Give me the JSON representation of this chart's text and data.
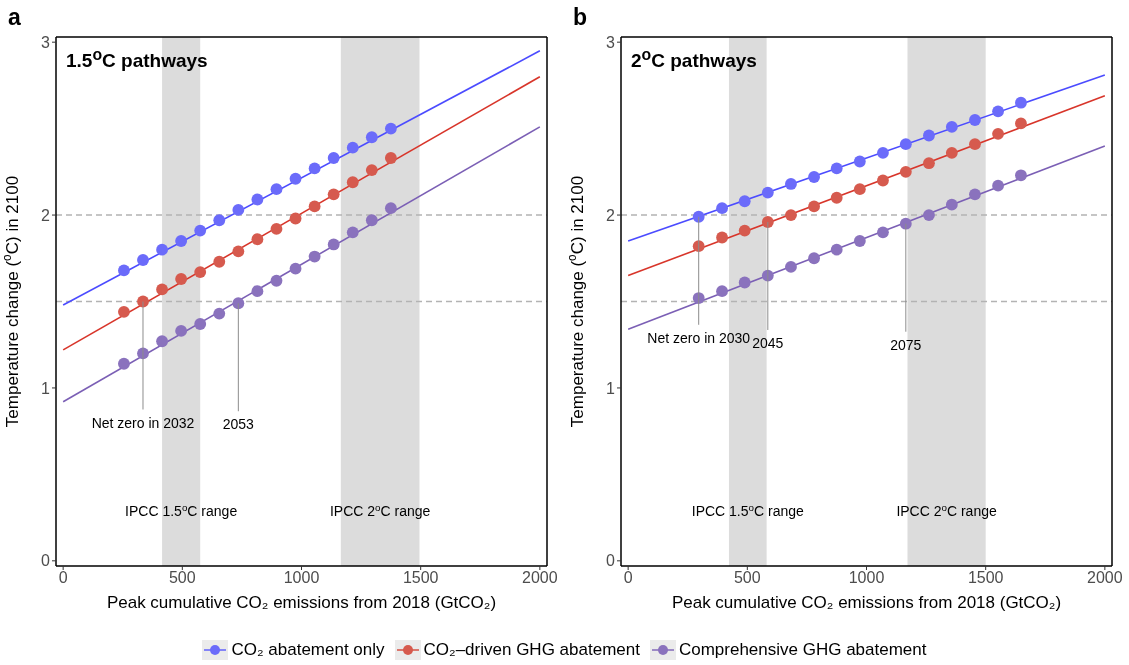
{
  "chart_data": [
    {
      "type": "scatter",
      "title": "a",
      "subtitle": "1.5$^{o}$C pathways",
      "xlabel": "Peak cumulative CO₂ emissions from 2018 (GtCO₂)",
      "ylabel": "Temperature change ($^{o}$C) in 2100",
      "xlim": [
        -30,
        2030
      ],
      "xticks": [
        0,
        500,
        1000,
        1500,
        2000
      ],
      "ylim": [
        -0.03,
        3.03
      ],
      "yticks": [
        0,
        1,
        2,
        3
      ],
      "legend": "bottom",
      "series": [
        {
          "type": "line",
          "color": "#4b4bff",
          "x": [
            0,
            2000
          ],
          "values": [
            1.48,
            2.95
          ]
        },
        {
          "type": "line",
          "color": "#d8352a",
          "x": [
            0,
            2000
          ],
          "values": [
            1.22,
            2.8
          ]
        },
        {
          "type": "line",
          "color": "#7b5fb5",
          "x": [
            0,
            2000
          ],
          "values": [
            0.92,
            2.51
          ]
        },
        {
          "marker": "circle",
          "name": "CO₂ abatement only",
          "color": "#6b6bfa",
          "x": [
            255,
            335,
            415,
            495,
            575,
            655,
            735,
            815,
            895,
            975,
            1055,
            1135,
            1215,
            1295,
            1375
          ],
          "values": [
            1.68,
            1.74,
            1.8,
            1.85,
            1.91,
            1.97,
            2.03,
            2.09,
            2.15,
            2.21,
            2.27,
            2.33,
            2.39,
            2.45,
            2.5
          ]
        },
        {
          "marker": "circle",
          "name": "CO₂–driven GHG abatement",
          "color": "#d65a4e",
          "x": [
            255,
            335,
            415,
            495,
            575,
            655,
            735,
            815,
            895,
            975,
            1055,
            1135,
            1215,
            1295,
            1375
          ],
          "values": [
            1.44,
            1.5,
            1.57,
            1.63,
            1.67,
            1.73,
            1.79,
            1.86,
            1.92,
            1.98,
            2.05,
            2.12,
            2.19,
            2.26,
            2.33
          ]
        },
        {
          "marker": "circle",
          "name": "Comprehensive GHG abatement",
          "color": "#8a72bd",
          "x": [
            255,
            335,
            415,
            495,
            575,
            655,
            735,
            815,
            895,
            975,
            1055,
            1135,
            1215,
            1295,
            1375
          ],
          "values": [
            1.14,
            1.2,
            1.27,
            1.33,
            1.37,
            1.43,
            1.49,
            1.56,
            1.62,
            1.69,
            1.76,
            1.83,
            1.9,
            1.97,
            2.04
          ]
        }
      ],
      "bands": [
        {
          "axis": "x",
          "from": 415,
          "to": 575,
          "label": "IPCC 1.5$^{o}$C range",
          "color": "#dcdcdc"
        },
        {
          "axis": "x",
          "from": 1165,
          "to": 1495,
          "label": "IPCC 2$^{o}$C range",
          "color": "#dcdcdc"
        }
      ],
      "ref_lines": [
        {
          "axis": "y",
          "value": 1.5,
          "color": "#b3b3b3",
          "line_style": "dashed"
        },
        {
          "axis": "y",
          "value": 2,
          "color": "#b3b3b3",
          "line_style": "dashed"
        }
      ],
      "annotations": [
        {
          "text": "Net zero in 2032",
          "x": 335,
          "y": 1.5
        },
        {
          "text": "2053",
          "x": 735,
          "y": 1.49
        }
      ]
    },
    {
      "type": "scatter",
      "title": "b",
      "subtitle": "2$^{o}$C pathways",
      "xlabel": "Peak cumulative CO₂ emissions from 2018 (GtCO₂)",
      "ylabel": "Temperature change ($^{o}$C) in 2100",
      "xlim": [
        -30,
        2030
      ],
      "xticks": [
        0,
        500,
        1000,
        1500,
        2000
      ],
      "ylim": [
        -0.03,
        3.03
      ],
      "yticks": [
        0,
        1,
        2,
        3
      ],
      "series": [
        {
          "type": "line",
          "color": "#4b4bff",
          "x": [
            0,
            2000
          ],
          "values": [
            1.85,
            2.81
          ]
        },
        {
          "type": "line",
          "color": "#d8352a",
          "x": [
            0,
            2000
          ],
          "values": [
            1.65,
            2.69
          ]
        },
        {
          "type": "line",
          "color": "#7b5fb5",
          "x": [
            0,
            2000
          ],
          "values": [
            1.34,
            2.4
          ]
        },
        {
          "marker": "circle",
          "color": "#6b6bfa",
          "x": [
            296,
            394,
            489,
            586,
            683,
            780,
            875,
            972,
            1069,
            1165,
            1262,
            1358,
            1455,
            1552,
            1648
          ],
          "values": [
            1.99,
            2.04,
            2.08,
            2.13,
            2.18,
            2.22,
            2.27,
            2.31,
            2.36,
            2.41,
            2.46,
            2.51,
            2.55,
            2.6,
            2.65
          ]
        },
        {
          "marker": "circle",
          "color": "#d65a4e",
          "x": [
            296,
            394,
            489,
            586,
            683,
            780,
            875,
            972,
            1069,
            1165,
            1262,
            1358,
            1455,
            1552,
            1648
          ],
          "values": [
            1.82,
            1.87,
            1.91,
            1.96,
            2.0,
            2.05,
            2.1,
            2.15,
            2.2,
            2.25,
            2.3,
            2.36,
            2.41,
            2.47,
            2.53
          ]
        },
        {
          "marker": "circle",
          "color": "#8a72bd",
          "x": [
            296,
            394,
            489,
            586,
            683,
            780,
            875,
            972,
            1069,
            1165,
            1262,
            1358,
            1455,
            1552,
            1648
          ],
          "values": [
            1.52,
            1.56,
            1.61,
            1.65,
            1.7,
            1.75,
            1.8,
            1.85,
            1.9,
            1.95,
            2.0,
            2.06,
            2.12,
            2.17,
            2.23
          ]
        }
      ],
      "bands": [
        {
          "axis": "x",
          "from": 423,
          "to": 581,
          "label": "IPCC 1.5$^{o}$C range",
          "color": "#dcdcdc"
        },
        {
          "axis": "x",
          "from": 1172,
          "to": 1500,
          "label": "IPCC 2$^{o}$C range",
          "color": "#dcdcdc"
        }
      ],
      "ref_lines": [
        {
          "axis": "y",
          "value": 1.5,
          "color": "#b3b3b3",
          "line_style": "dashed"
        },
        {
          "axis": "y",
          "value": 2,
          "color": "#b3b3b3",
          "line_style": "dashed"
        }
      ],
      "annotations": [
        {
          "text": "Net zero in 2030",
          "x": 296,
          "y": 1.99
        },
        {
          "text": "2045",
          "x": 586,
          "y": 1.96
        },
        {
          "text": "2075",
          "x": 1165,
          "y": 1.95
        }
      ]
    }
  ]
}
